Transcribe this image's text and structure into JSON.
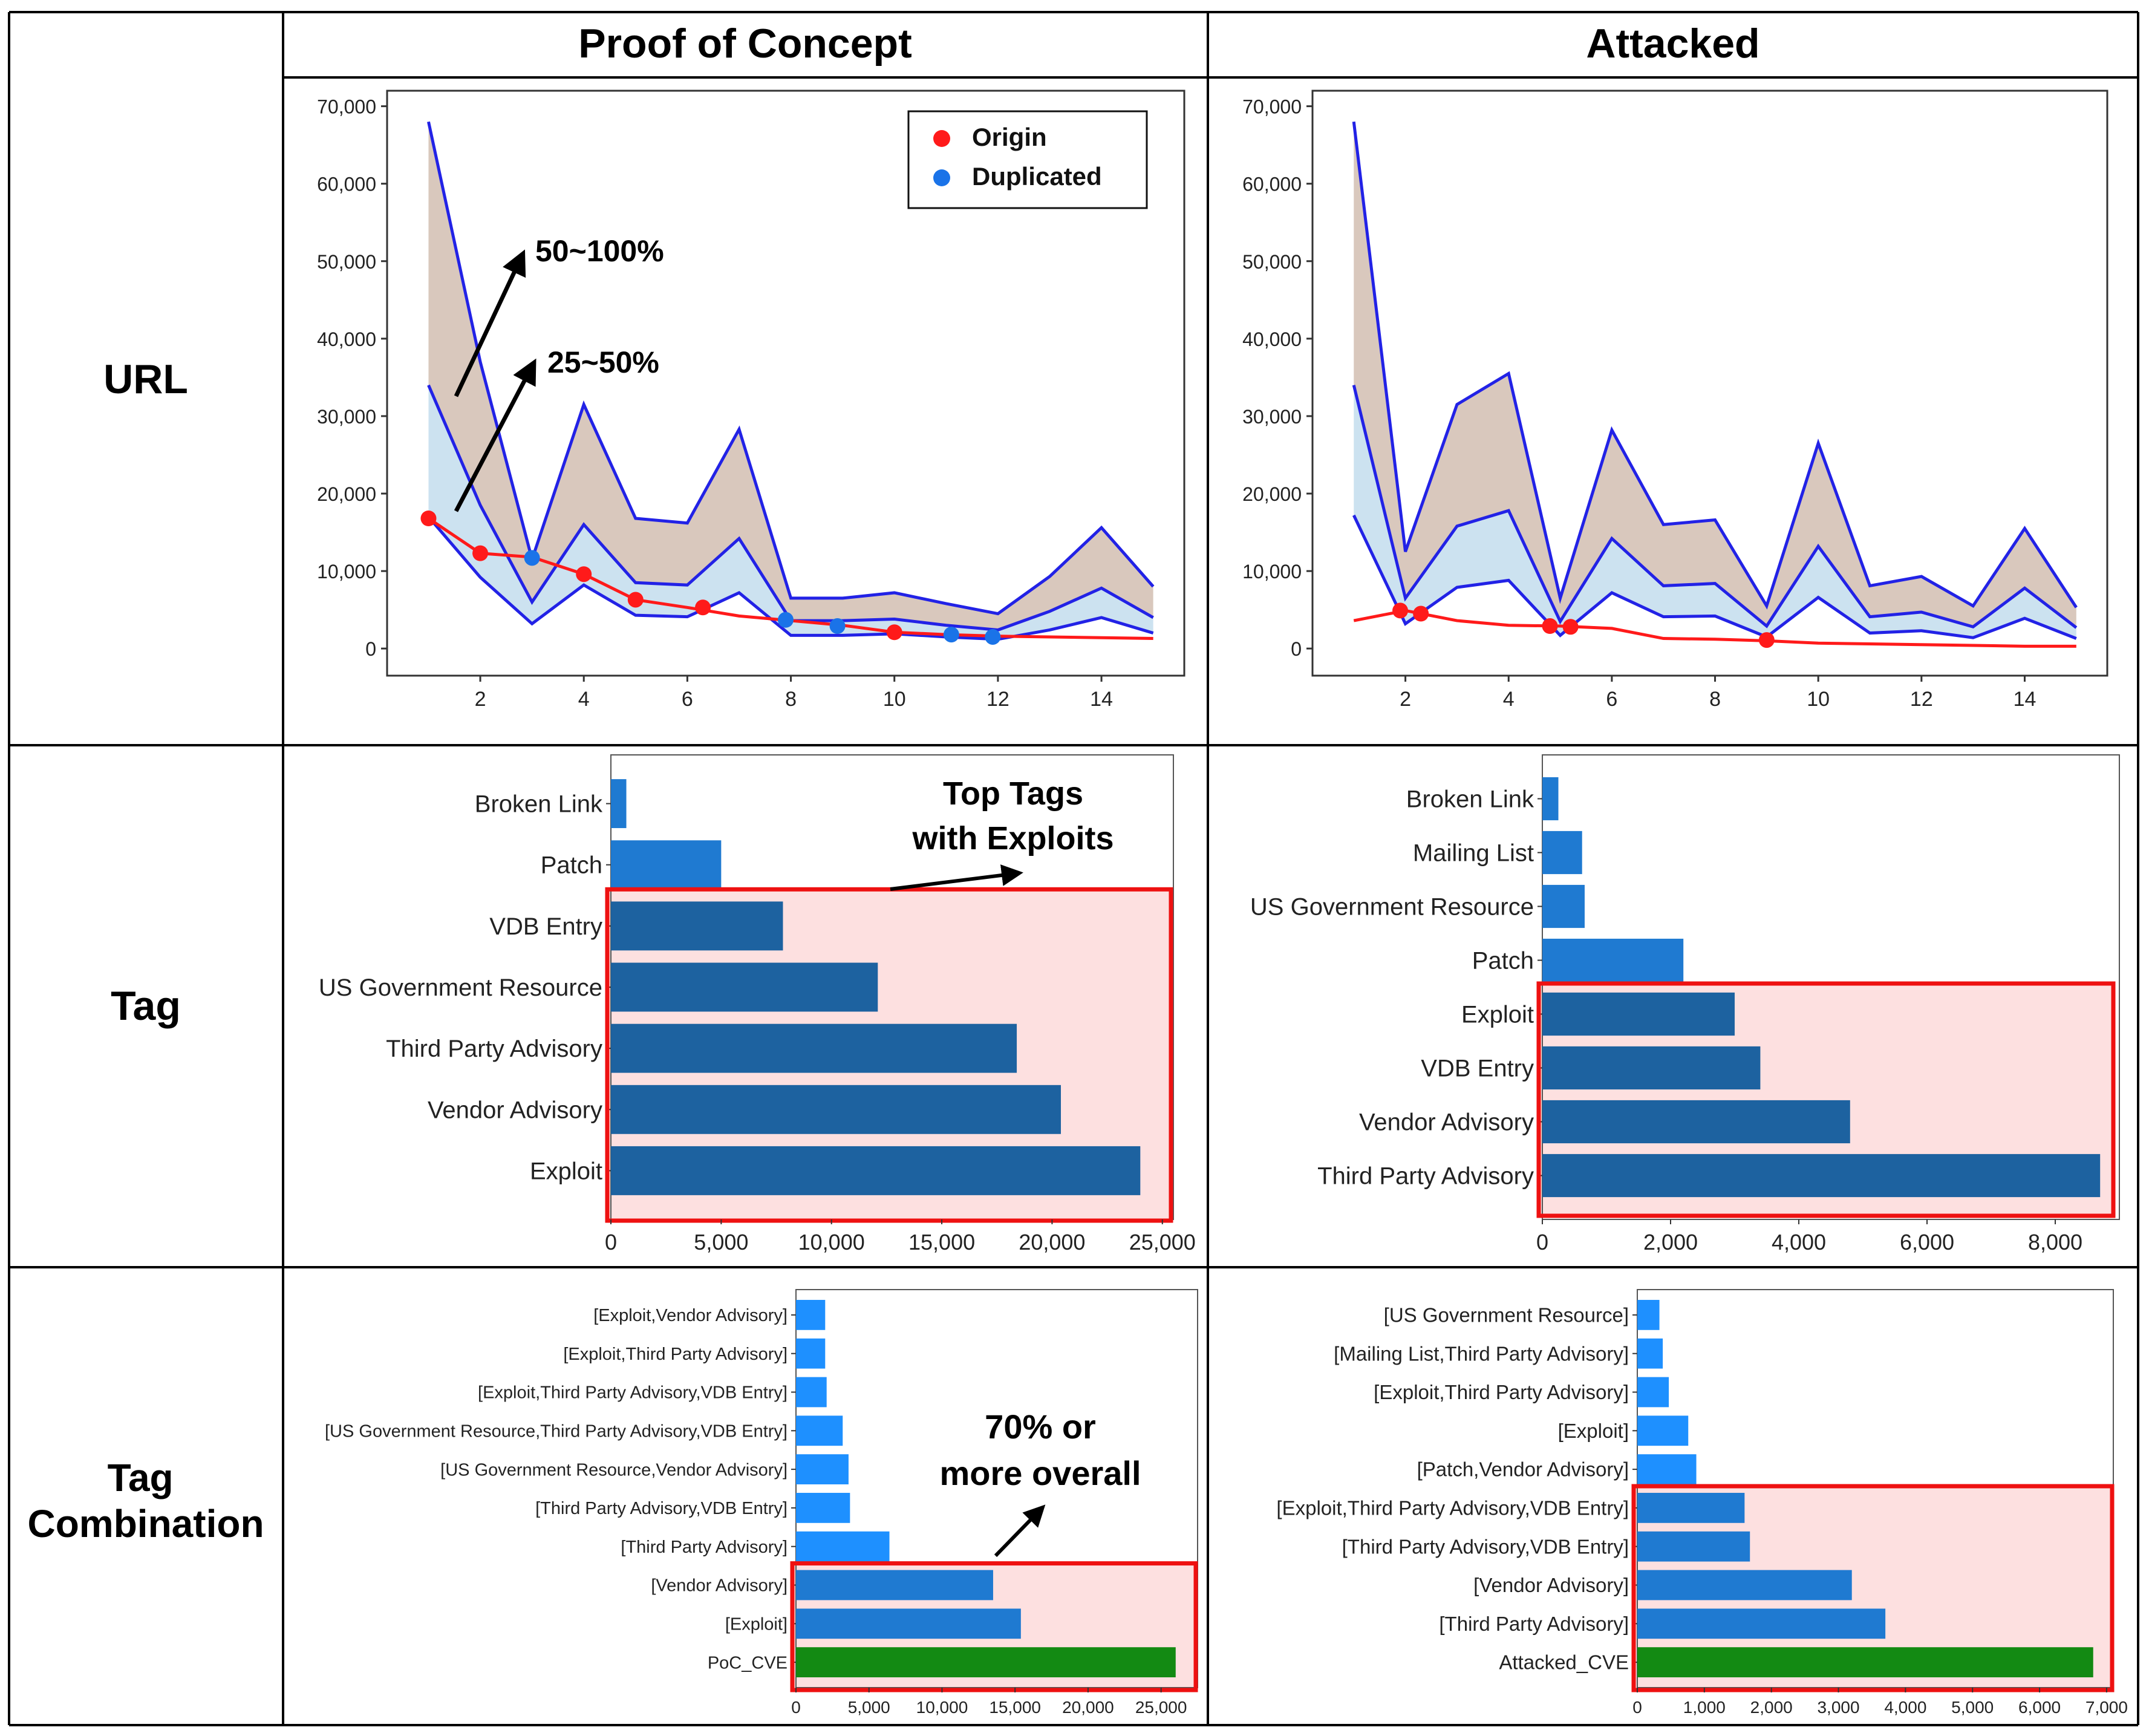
{
  "columns": [
    "Proof of Concept",
    "Attacked"
  ],
  "rows": [
    "URL",
    "Tag",
    "Tag\nCombination"
  ],
  "annotations": {
    "band_high": "50~100%",
    "band_low": "25~50%",
    "top_tags": "Top Tags\nwith Exploits",
    "seventy_pct": "70% or\nmore overall"
  },
  "colors": {
    "origin": "#ff1a1a",
    "duplicated": "#1a73e8",
    "envelope": "#2222e6",
    "band_high_fill": "#d9c8bd",
    "band_low_fill": "#cce2f0",
    "bar_dark": "#1d62a0",
    "bar_mid": "#1f7ad1",
    "bar_light": "#1e90ff",
    "bar_green": "#138a13",
    "highlight_fill": "#fde0e0",
    "highlight_stroke": "#ee1111"
  },
  "chart_data": [
    {
      "id": "url_poc",
      "type": "area",
      "title": "",
      "xlabel": "",
      "ylabel": "",
      "xlim": [
        0.2,
        15.6
      ],
      "ylim": [
        -3500,
        72000
      ],
      "xticks": [
        2,
        4,
        6,
        8,
        10,
        12,
        14
      ],
      "yticks": [
        0,
        10000,
        20000,
        30000,
        40000,
        50000,
        60000,
        70000
      ],
      "ytick_labels": [
        "0",
        "10,000",
        "20,000",
        "30,000",
        "40,000",
        "50,000",
        "60,000",
        "70,000"
      ],
      "legend": {
        "position": "top-right",
        "entries": [
          "Origin",
          "Duplicated"
        ]
      },
      "series": [
        {
          "name": "upper",
          "x": [
            1,
            2,
            3,
            4,
            5,
            6,
            7,
            8,
            9,
            10,
            11,
            12,
            13,
            14,
            15
          ],
          "values": [
            68000,
            37000,
            11500,
            31500,
            16800,
            16200,
            28300,
            6500,
            6500,
            7200,
            5800,
            4500,
            9300,
            15600,
            8000
          ]
        },
        {
          "name": "middle",
          "x": [
            1,
            2,
            3,
            4,
            5,
            6,
            7,
            8,
            9,
            10,
            11,
            12,
            13,
            14,
            15
          ],
          "values": [
            34000,
            18500,
            6000,
            16000,
            8500,
            8200,
            14200,
            3600,
            3600,
            3800,
            3000,
            2400,
            4800,
            7800,
            4000
          ]
        },
        {
          "name": "lower",
          "x": [
            1,
            2,
            3,
            4,
            5,
            6,
            7,
            8,
            9,
            10,
            11,
            12,
            13,
            14,
            15
          ],
          "values": [
            17000,
            9200,
            3200,
            8200,
            4300,
            4100,
            7200,
            1700,
            1700,
            1900,
            1500,
            1200,
            2400,
            4000,
            2000
          ]
        },
        {
          "name": "Origin",
          "x": [
            1,
            2,
            3,
            4,
            5,
            6,
            7,
            8,
            9,
            10,
            11,
            12,
            13,
            14,
            15
          ],
          "values": [
            16800,
            12300,
            11800,
            9600,
            6300,
            5300,
            4200,
            3600,
            3000,
            2100,
            1800,
            1600,
            1500,
            1400,
            1300
          ]
        }
      ],
      "origin_markers": {
        "x": [
          1,
          2,
          4,
          5,
          6.3,
          10
        ],
        "y": [
          16800,
          12300,
          9600,
          6300,
          5300,
          2100
        ]
      },
      "duplicated_markers": {
        "x": [
          3,
          7.9,
          8.9,
          11.1,
          11.9
        ],
        "y": [
          11700,
          3700,
          2900,
          1800,
          1500
        ]
      }
    },
    {
      "id": "url_attacked",
      "type": "area",
      "title": "",
      "xlabel": "",
      "ylabel": "",
      "xlim": [
        0.2,
        15.6
      ],
      "ylim": [
        -3500,
        72000
      ],
      "xticks": [
        2,
        4,
        6,
        8,
        10,
        12,
        14
      ],
      "yticks": [
        0,
        10000,
        20000,
        30000,
        40000,
        50000,
        60000,
        70000
      ],
      "ytick_labels": [
        "0",
        "10,000",
        "20,000",
        "30,000",
        "40,000",
        "50,000",
        "60,000",
        "70,000"
      ],
      "series": [
        {
          "name": "upper",
          "x": [
            1,
            2,
            3,
            4,
            5,
            6,
            7,
            8,
            9,
            10,
            11,
            12,
            13,
            14,
            15
          ],
          "values": [
            68000,
            12500,
            31500,
            35500,
            6500,
            28200,
            16000,
            16600,
            5500,
            26500,
            8100,
            9300,
            5500,
            15500,
            5300
          ]
        },
        {
          "name": "middle",
          "x": [
            1,
            2,
            3,
            4,
            5,
            6,
            7,
            8,
            9,
            10,
            11,
            12,
            13,
            14,
            15
          ],
          "values": [
            34000,
            6500,
            15800,
            17800,
            3500,
            14200,
            8100,
            8400,
            2900,
            13200,
            4100,
            4700,
            2800,
            7800,
            2700
          ]
        },
        {
          "name": "lower",
          "x": [
            1,
            2,
            3,
            4,
            5,
            6,
            7,
            8,
            9,
            10,
            11,
            12,
            13,
            14,
            15
          ],
          "values": [
            17200,
            3200,
            7900,
            8800,
            1700,
            7200,
            4100,
            4200,
            1500,
            6600,
            2000,
            2300,
            1400,
            3900,
            1300
          ]
        },
        {
          "name": "Origin",
          "x": [
            1,
            2,
            3,
            4,
            5,
            6,
            7,
            8,
            9,
            10,
            11,
            12,
            13,
            14,
            15
          ],
          "values": [
            3600,
            4900,
            3600,
            3000,
            2900,
            2600,
            1300,
            1200,
            1000,
            700,
            600,
            500,
            400,
            300,
            300
          ]
        }
      ],
      "origin_markers": {
        "x": [
          1.9,
          2.3,
          4.8,
          5.2,
          9
        ],
        "y": [
          4900,
          4500,
          2900,
          2800,
          1100
        ]
      }
    },
    {
      "id": "tag_poc",
      "type": "bar",
      "orientation": "horizontal",
      "xlim": [
        0,
        25500
      ],
      "xticks": [
        0,
        5000,
        10000,
        15000,
        20000,
        25000
      ],
      "xtick_labels": [
        "0",
        "5,000",
        "10,000",
        "15,000",
        "20,000",
        "25,000"
      ],
      "categories": [
        "Broken Link",
        "Patch",
        "VDB Entry",
        "US Government Resource",
        "Third Party Advisory",
        "Vendor Advisory",
        "Exploit"
      ],
      "values": [
        700,
        5000,
        7800,
        12100,
        18400,
        20400,
        24000
      ],
      "bar_colors": [
        "mid",
        "mid",
        "dark",
        "dark",
        "dark",
        "dark",
        "dark"
      ],
      "highlight_from": 2
    },
    {
      "id": "tag_attacked",
      "type": "bar",
      "orientation": "horizontal",
      "xlim": [
        0,
        9000
      ],
      "xticks": [
        0,
        2000,
        4000,
        6000,
        8000
      ],
      "xtick_labels": [
        "0",
        "2,000",
        "4,000",
        "6,000",
        "8,000"
      ],
      "categories": [
        "Broken Link",
        "Mailing List",
        "US Government Resource",
        "Patch",
        "Exploit",
        "VDB Entry",
        "Vendor Advisory",
        "Third Party Advisory"
      ],
      "values": [
        250,
        620,
        660,
        2200,
        3000,
        3400,
        4800,
        8700
      ],
      "bar_colors": [
        "mid",
        "mid",
        "mid",
        "mid",
        "dark",
        "dark",
        "dark",
        "dark"
      ],
      "highlight_from": 4
    },
    {
      "id": "combo_poc",
      "type": "bar",
      "orientation": "horizontal",
      "xlim": [
        0,
        27500
      ],
      "xticks": [
        0,
        5000,
        10000,
        15000,
        20000,
        25000
      ],
      "xtick_labels": [
        "0",
        "5,000",
        "10,000",
        "15,000",
        "20,000",
        "25,000"
      ],
      "categories": [
        "[Exploit,Vendor Advisory]",
        "[Exploit,Third Party Advisory]",
        "[Exploit,Third Party Advisory,VDB Entry]",
        "[US Government Resource,Third Party Advisory,VDB Entry]",
        "[US Government Resource,Vendor Advisory]",
        "[Third Party Advisory,VDB Entry]",
        "[Third Party Advisory]",
        "[Vendor Advisory]",
        "[Exploit]",
        "PoC_CVE"
      ],
      "values": [
        2000,
        2000,
        2100,
        3200,
        3600,
        3700,
        6400,
        13500,
        15400,
        26000
      ],
      "bar_colors": [
        "light",
        "light",
        "light",
        "light",
        "light",
        "light",
        "light",
        "mid",
        "mid",
        "green"
      ],
      "highlight_from": 7
    },
    {
      "id": "combo_attacked",
      "type": "bar",
      "orientation": "horizontal",
      "xlim": [
        0,
        7100
      ],
      "xticks": [
        0,
        1000,
        2000,
        3000,
        4000,
        5000,
        6000,
        7000
      ],
      "xtick_labels": [
        "0",
        "1,000",
        "2,000",
        "3,000",
        "4,000",
        "5,000",
        "6,000",
        "7,000"
      ],
      "categories": [
        "[US Government Resource]",
        "[Mailing List,Third Party Advisory]",
        "[Exploit,Third Party Advisory]",
        "[Exploit]",
        "[Patch,Vendor Advisory]",
        "[Exploit,Third Party Advisory,VDB Entry]",
        "[Third Party Advisory,VDB Entry]",
        "[Vendor Advisory]",
        "[Third Party Advisory]",
        "Attacked_CVE"
      ],
      "values": [
        330,
        380,
        470,
        760,
        880,
        1600,
        1680,
        3200,
        3700,
        6800
      ],
      "bar_colors": [
        "light",
        "light",
        "light",
        "light",
        "light",
        "mid",
        "mid",
        "mid",
        "mid",
        "green"
      ],
      "highlight_from": 5
    }
  ]
}
